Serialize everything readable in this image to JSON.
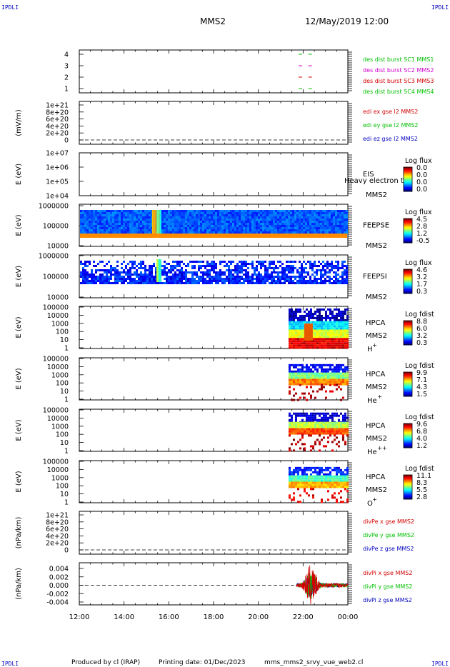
{
  "header": {
    "corner_label": "IPDLI",
    "spacecraft": "MMS2",
    "datetime": "12/May/2019 12:00"
  },
  "footer": {
    "produced_by": "Produced by cl (IRAP)",
    "printing_date": "Printing date: 01/Dec/2023",
    "script_name": "mms_mms2_srvy_vue_web2.cl"
  },
  "colors": {
    "red": "#d40000",
    "green": "#00c000",
    "blue": "#0000c0",
    "magenta": "#d000d0",
    "orange": "#ff8c00"
  },
  "chart_data": {
    "type": "heatmap",
    "x_ticks": [
      "12:00",
      "14:00",
      "16:00",
      "18:00",
      "20:00",
      "22:00",
      "00:00"
    ],
    "xlim": [
      "12:00",
      "00:00"
    ],
    "panels": [
      {
        "id": "burst",
        "type": "line",
        "ylabel": "",
        "yticks": [
          "4",
          "3",
          "2",
          "1"
        ],
        "ylim": [
          0.5,
          4.5
        ],
        "series": [
          {
            "name": "des dist burst SC1 MMS1",
            "color": "green",
            "y": 4,
            "x": [
              21.8,
              22.3
            ]
          },
          {
            "name": "des dist burst SC2 MMS2",
            "color": "magenta",
            "y": 3,
            "x": [
              21.8,
              22.3
            ]
          },
          {
            "name": "des dist burst SC3 MMS3",
            "color": "red",
            "y": 2,
            "x": [
              21.8,
              22.3
            ]
          },
          {
            "name": "des dist burst SC4 MMS4",
            "color": "green",
            "y": 1,
            "x": [
              21.8,
              22.3
            ]
          }
        ]
      },
      {
        "id": "edi",
        "type": "line",
        "ylabel": "(mV/m)",
        "yticks": [
          "1e+21",
          "8e+20",
          "6e+20",
          "4e+20",
          "2e+20",
          "0"
        ],
        "series": [
          {
            "name": "edi ex gse l2 MMS2",
            "color": "red"
          },
          {
            "name": "edi ey gse l2 MMS2",
            "color": "green"
          },
          {
            "name": "edi ez gse l2 MMS2",
            "color": "blue"
          }
        ]
      },
      {
        "id": "eis",
        "type": "heatmap",
        "ylabel": "E (eV)",
        "yticks": [
          "1e+07",
          "1e+06",
          "1e+05",
          "1e+04"
        ],
        "instrument": "EIS",
        "sc": "MMS2",
        "overlay_text": "Heavy electron to",
        "colorbar_title": "Log flux",
        "colorbar_ticks": [
          "0.0",
          "0.0",
          "0.0",
          "0.0"
        ]
      },
      {
        "id": "feepse",
        "type": "heatmap",
        "ylabel": "E (eV)",
        "yticks": [
          "1000000",
          "100000",
          "10000"
        ],
        "instrument": "FEEPSE",
        "sc": "MMS2",
        "colorbar_title": "Log flux",
        "colorbar_ticks": [
          "4.5",
          "2.8",
          "1.2",
          "-0.5"
        ]
      },
      {
        "id": "feepsi",
        "type": "heatmap",
        "ylabel": "E (eV)",
        "yticks": [
          "1000000",
          "100000",
          "10000"
        ],
        "instrument": "FEEPSI",
        "sc": "MMS2",
        "colorbar_title": "Log flux",
        "colorbar_ticks": [
          "4.6",
          "3.2",
          "1.7",
          "0.3"
        ]
      },
      {
        "id": "hpca_h",
        "type": "heatmap",
        "ylabel": "E (eV)",
        "yticks": [
          "100000",
          "10000",
          "1000",
          "100",
          "10",
          "1"
        ],
        "instrument": "HPCA",
        "sc": "MMS2",
        "species": "H",
        "charge": "+",
        "colorbar_title": "Log fdist",
        "colorbar_ticks": [
          "8.8",
          "6.0",
          "3.2",
          "0.3"
        ]
      },
      {
        "id": "hpca_he1",
        "type": "heatmap",
        "ylabel": "E (eV)",
        "yticks": [
          "100000",
          "10000",
          "1000",
          "100",
          "10",
          "1"
        ],
        "instrument": "HPCA",
        "sc": "MMS2",
        "species": "He",
        "charge": "+",
        "colorbar_title": "Log fdist",
        "colorbar_ticks": [
          "9.9",
          "7.1",
          "4.3",
          "1.5"
        ]
      },
      {
        "id": "hpca_he2",
        "type": "heatmap",
        "ylabel": "E (eV)",
        "yticks": [
          "100000",
          "10000",
          "1000",
          "100",
          "10",
          "1"
        ],
        "instrument": "HPCA",
        "sc": "MMS2",
        "species": "He",
        "charge": "++",
        "colorbar_title": "Log fdist",
        "colorbar_ticks": [
          "9.6",
          "6.8",
          "4.0",
          "1.2"
        ]
      },
      {
        "id": "hpca_o",
        "type": "heatmap",
        "ylabel": "E (eV)",
        "yticks": [
          "100000",
          "10000",
          "1000",
          "100",
          "10",
          "1"
        ],
        "instrument": "HPCA",
        "sc": "MMS2",
        "species": "O",
        "charge": "+",
        "colorbar_title": "Log fdist",
        "colorbar_ticks": [
          "11.1",
          "8.3",
          "5.5",
          "2.8"
        ]
      },
      {
        "id": "divpe",
        "type": "line",
        "ylabel": "(nPa/km)",
        "yticks": [
          "1e+21",
          "8e+20",
          "6e+20",
          "4e+20",
          "2e+20",
          "0"
        ],
        "series": [
          {
            "name": "divPe x gse MMS2",
            "color": "red"
          },
          {
            "name": "divPe y gse MMS2",
            "color": "green"
          },
          {
            "name": "divPe z gse MMS2",
            "color": "blue"
          }
        ]
      },
      {
        "id": "divpi",
        "type": "line",
        "ylabel": "(nPa/km)",
        "yticks": [
          "0.004",
          "0.002",
          "0.000",
          "-0.002",
          "-0.004"
        ],
        "ylim": [
          -0.0045,
          0.0045
        ],
        "series": [
          {
            "name": "divPi x gse MMS2",
            "color": "red"
          },
          {
            "name": "divPi y gse MMS2",
            "color": "green"
          },
          {
            "name": "divPi z gse MMS2",
            "color": "blue"
          }
        ]
      }
    ]
  }
}
